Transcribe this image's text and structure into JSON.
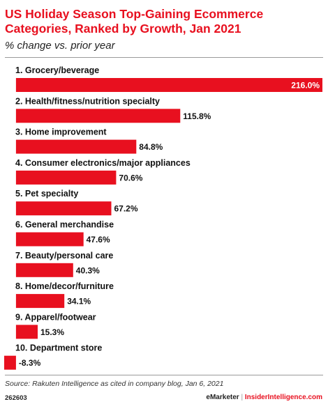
{
  "title": "US Holiday Season Top-Gaining Ecommerce Categories, Ranked by Growth, Jan 2021",
  "subtitle": "% change vs. prior year",
  "source": "Source: Rakuten Intelligence as cited in company blog, Jan 6, 2021",
  "chart_id": "262603",
  "brand": {
    "emarketer": "eMarketer",
    "separator": "|",
    "insider": "InsiderIntelligence.com"
  },
  "colors": {
    "bar": "#e8101f",
    "title": "#e8101f"
  },
  "chart_data": {
    "type": "bar",
    "orientation": "horizontal",
    "categories": [
      "1. Grocery/beverage",
      "2. Health/fitness/nutrition specialty",
      "3. Home improvement",
      "4. Consumer electronics/major appliances",
      "5. Pet specialty",
      "6. General merchandise",
      "7. Beauty/personal care",
      "8. Home/decor/furniture",
      "9. Apparel/footwear",
      "10. Department store"
    ],
    "values": [
      216.0,
      115.8,
      84.8,
      70.6,
      67.2,
      47.6,
      40.3,
      34.1,
      15.3,
      -8.3
    ],
    "value_labels": [
      "216.0%",
      "115.8%",
      "84.8%",
      "70.6%",
      "67.2%",
      "47.6%",
      "40.3%",
      "34.1%",
      "15.3%",
      "-8.3%"
    ],
    "xlim": [
      -8.3,
      216.0
    ],
    "grid": false,
    "legend": "none"
  }
}
